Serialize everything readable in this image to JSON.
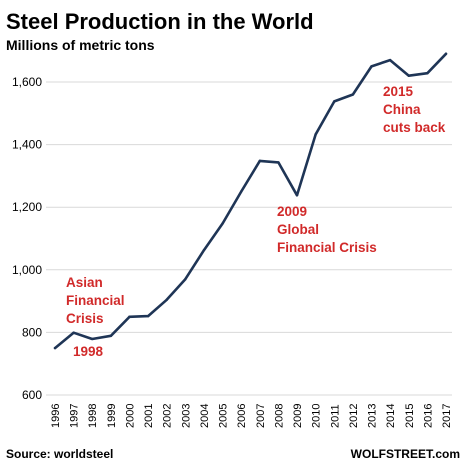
{
  "chart_data": {
    "type": "line",
    "title": "Steel Production in the World",
    "subtitle": "Millions of metric tons",
    "x": [
      "1996",
      "1997",
      "1998",
      "1999",
      "2000",
      "2001",
      "2002",
      "2003",
      "2004",
      "2005",
      "2006",
      "2007",
      "2008",
      "2009",
      "2010",
      "2011",
      "2012",
      "2013",
      "2014",
      "2015",
      "2016",
      "2017"
    ],
    "series": [
      {
        "values": [
          750,
          799,
          779,
          789,
          850,
          852,
          904,
          970,
          1063,
          1148,
          1250,
          1348,
          1343,
          1238,
          1433,
          1538,
          1560,
          1650,
          1670,
          1620,
          1628,
          1690
        ]
      }
    ],
    "ylim": [
      600,
      1700
    ],
    "yticks": [
      600,
      800,
      1000,
      1200,
      1400,
      1600
    ],
    "ytick_labels": [
      "600",
      "800",
      "1,000",
      "1,200",
      "1,400",
      "1,600"
    ],
    "grid": true,
    "line_color": "#1f3556",
    "annotation_color": "#d12a2a",
    "annotations": [
      {
        "lines": [
          "Asian",
          "Financial",
          "Crisis"
        ]
      },
      {
        "lines": [
          "1998"
        ]
      },
      {
        "lines": [
          "2009",
          "Global",
          "Financial Crisis"
        ]
      },
      {
        "lines": [
          "2015",
          "China",
          "cuts back"
        ]
      }
    ]
  },
  "footer": {
    "source": "Source: worldsteel",
    "brand": "WOLFSTREET.com"
  }
}
